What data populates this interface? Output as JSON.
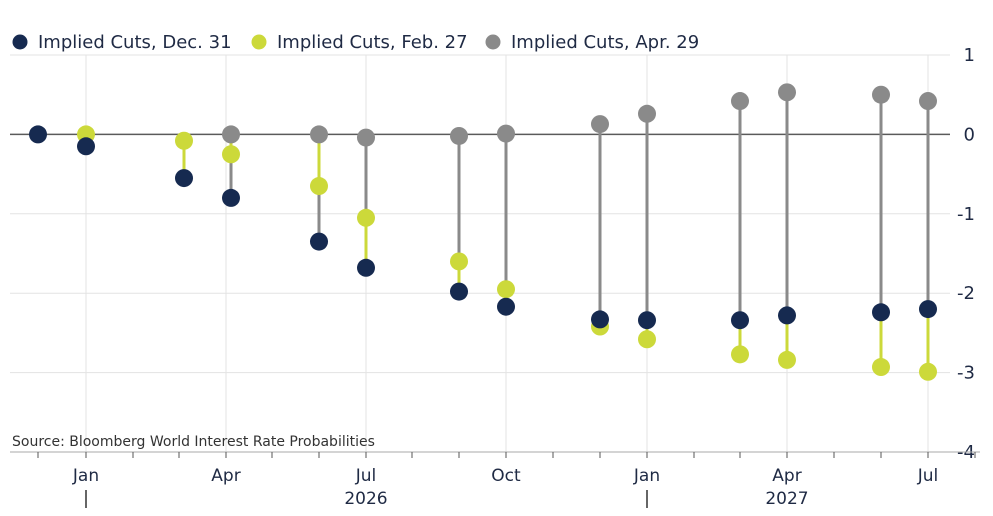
{
  "chart_data": {
    "type": "scatter",
    "title": "",
    "xlabel": "",
    "ylabel": "",
    "ylim": [
      -4,
      1
    ],
    "yticks": [
      1,
      0,
      -1,
      -2,
      -3,
      -4
    ],
    "grid": true,
    "legend_position": "top-left",
    "meetings": [
      "2025-12",
      "2026-01",
      "2026-03",
      "2026-04",
      "2026-06",
      "2026-07",
      "2026-09",
      "2026-10",
      "2026-12",
      "2027-01",
      "2027-03",
      "2027-04",
      "2027-06",
      "2027-07"
    ],
    "x_month_labels": [
      "Jan",
      "Apr",
      "Jul",
      "Oct",
      "Jan",
      "Apr",
      "Jul"
    ],
    "x_year_labels": [
      "2026",
      "2027"
    ],
    "series": [
      {
        "name": "Implied Cuts, Dec. 31",
        "color": "#162a50",
        "values": [
          0.0,
          -0.15,
          -0.55,
          -0.8,
          -1.35,
          -1.68,
          -1.98,
          -2.17,
          -2.33,
          -2.34,
          -2.34,
          -2.28,
          -2.24,
          -2.2
        ]
      },
      {
        "name": "Implied Cuts, Feb. 27",
        "color": "#ccd93a",
        "values": [
          null,
          0.0,
          -0.08,
          -0.25,
          -0.65,
          -1.05,
          -1.6,
          -1.95,
          -2.42,
          -2.58,
          -2.77,
          -2.84,
          -2.93,
          -2.99
        ]
      },
      {
        "name": "Implied Cuts, Apr. 29",
        "color": "#8a8a8a",
        "values": [
          null,
          null,
          null,
          0.0,
          0.0,
          -0.04,
          -0.02,
          0.01,
          0.13,
          0.26,
          0.42,
          0.53,
          0.5,
          0.42
        ]
      }
    ],
    "source": "Source: Bloomberg World Interest Rate Probabilities"
  }
}
